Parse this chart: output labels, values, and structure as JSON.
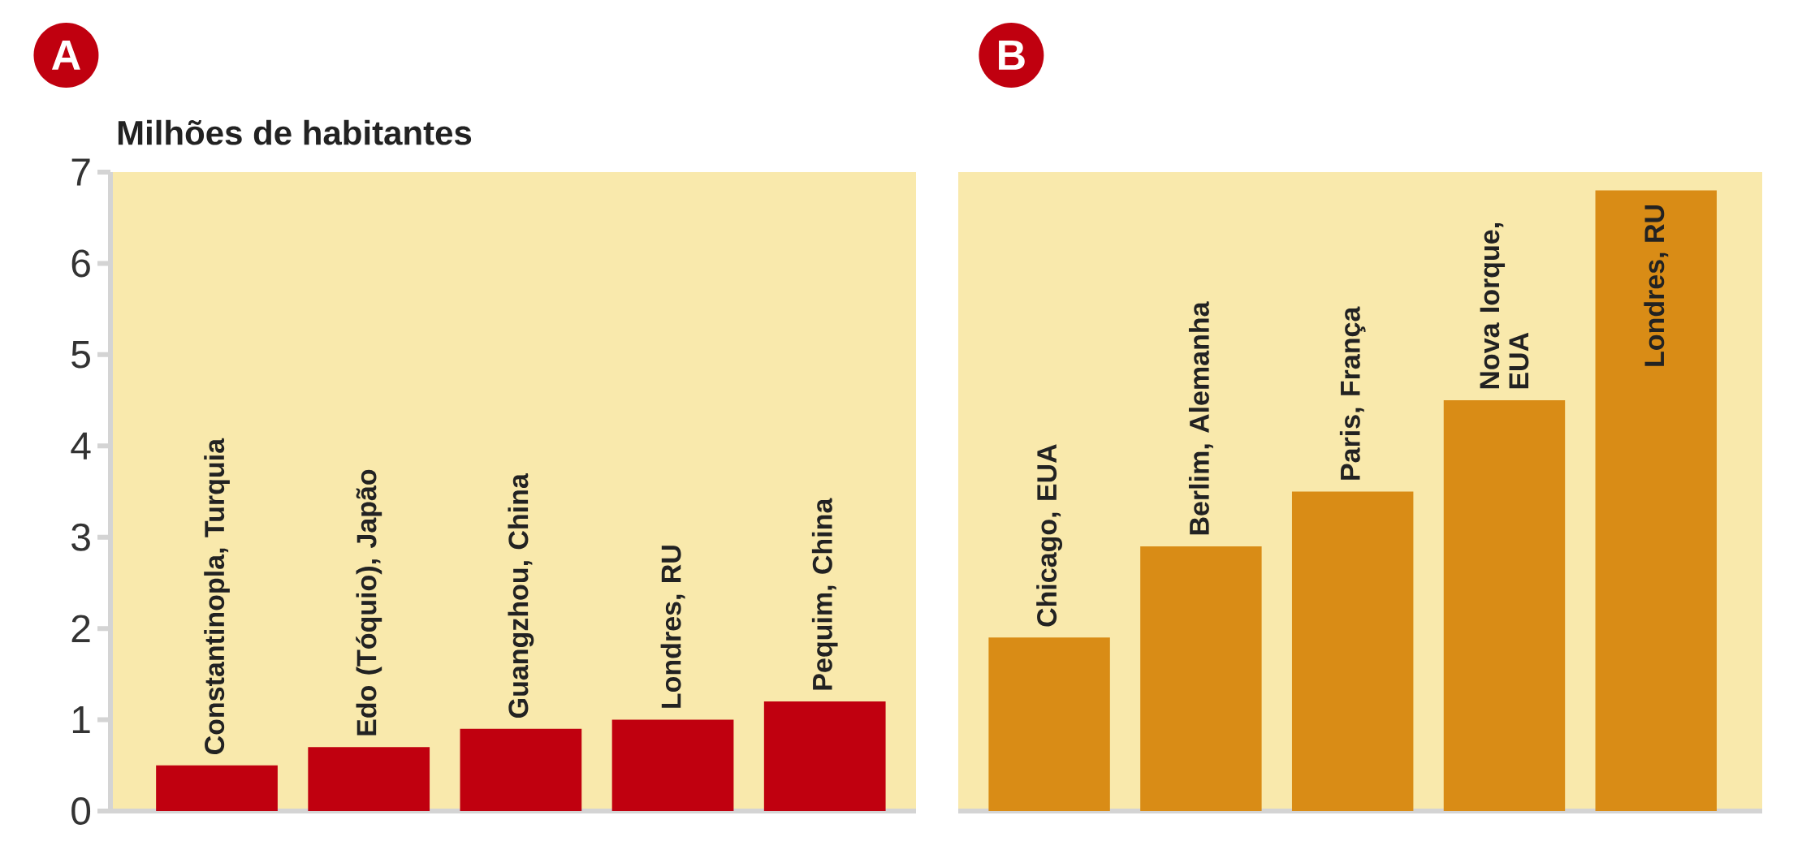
{
  "chart_data": [
    {
      "type": "bar",
      "title": "A",
      "ylabel": "Milhões de habitantes",
      "categories": [
        "Constantinopla, Turquia",
        "Edo (Tóquio), Japão",
        "Guangzhou, China",
        "Londres, RU",
        "Pequim, China"
      ],
      "values": [
        0.5,
        0.7,
        0.9,
        1.0,
        1.2
      ],
      "color": "#c0000f",
      "ylim": [
        0,
        7
      ],
      "yticks": [
        0,
        1,
        2,
        3,
        4,
        5,
        6,
        7
      ]
    },
    {
      "type": "bar",
      "title": "B",
      "categories": [
        "Chicago, EUA",
        "Berlim, Alemanha",
        "Paris, França",
        "Nova Iorque, EUA",
        "Londres, RU"
      ],
      "values": [
        1.9,
        2.9,
        3.5,
        4.5,
        6.8
      ],
      "color": "#d98c16",
      "ylim": [
        0,
        7
      ]
    }
  ]
}
